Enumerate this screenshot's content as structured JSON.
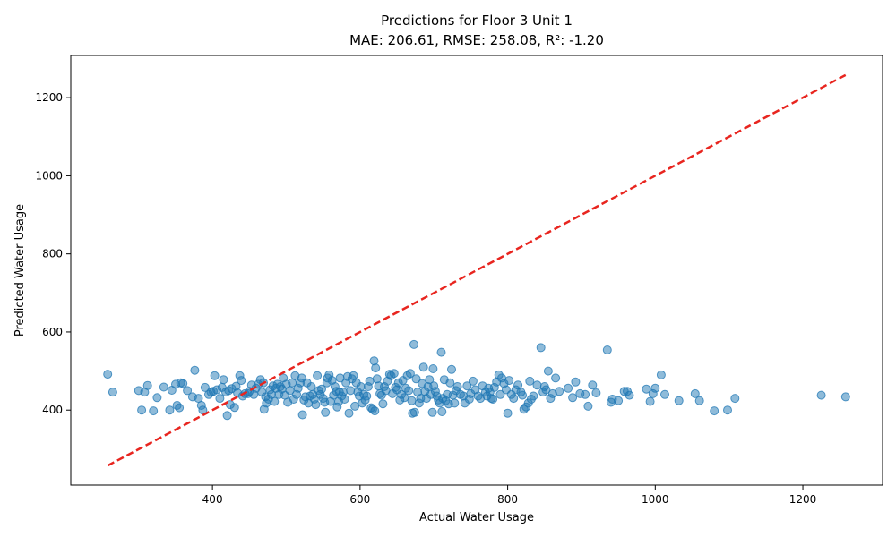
{
  "chart_data": {
    "type": "scatter",
    "title": "Predictions for Floor 3 Unit 1",
    "subtitle": "MAE: 206.61, RMSE: 258.08, R²: -1.20",
    "xlabel": "Actual Water Usage",
    "ylabel": "Predicted Water Usage",
    "xlim": [
      208,
      1308
    ],
    "ylim": [
      208,
      1308
    ],
    "xticks": [
      400,
      600,
      800,
      1000,
      1200
    ],
    "yticks": [
      400,
      600,
      800,
      1000,
      1200
    ],
    "grid": false,
    "legend": "none",
    "point_color": "#1f77b4",
    "point_alpha": 0.5,
    "reference_line": {
      "x": [
        258,
        1258
      ],
      "y": [
        258,
        1258
      ],
      "color": "#e8251f",
      "style": "dashed"
    },
    "series": [
      {
        "points": [
          [
            258,
            492
          ],
          [
            265,
            446
          ],
          [
            300,
            450
          ],
          [
            304,
            400
          ],
          [
            308,
            446
          ],
          [
            312,
            463
          ],
          [
            320,
            398
          ],
          [
            325,
            432
          ],
          [
            334,
            459
          ],
          [
            342,
            400
          ],
          [
            345,
            451
          ],
          [
            350,
            466
          ],
          [
            352,
            412
          ],
          [
            355,
            406
          ],
          [
            357,
            470
          ],
          [
            360,
            468
          ],
          [
            366,
            450
          ],
          [
            373,
            434
          ],
          [
            376,
            502
          ],
          [
            381,
            430
          ],
          [
            385,
            412
          ],
          [
            387,
            400
          ],
          [
            390,
            458
          ],
          [
            395,
            440
          ],
          [
            398,
            446
          ],
          [
            401,
            448
          ],
          [
            403,
            488
          ],
          [
            406,
            452
          ],
          [
            410,
            430
          ],
          [
            413,
            458
          ],
          [
            415,
            478
          ],
          [
            418,
            446
          ],
          [
            420,
            386
          ],
          [
            422,
            450
          ],
          [
            424,
            414
          ],
          [
            426,
            455
          ],
          [
            430,
            407
          ],
          [
            432,
            461
          ],
          [
            434,
            444
          ],
          [
            437,
            488
          ],
          [
            439,
            476
          ],
          [
            441,
            436
          ],
          [
            444,
            442
          ],
          [
            448,
            442
          ],
          [
            450,
            448
          ],
          [
            453,
            464
          ],
          [
            456,
            440
          ],
          [
            459,
            456
          ],
          [
            462,
            466
          ],
          [
            465,
            478
          ],
          [
            467,
            446
          ],
          [
            469,
            470
          ],
          [
            470,
            402
          ],
          [
            472,
            434
          ],
          [
            473,
            418
          ],
          [
            476,
            428
          ],
          [
            478,
            452
          ],
          [
            480,
            440
          ],
          [
            482,
            462
          ],
          [
            484,
            422
          ],
          [
            486,
            456
          ],
          [
            488,
            466
          ],
          [
            490,
            440
          ],
          [
            492,
            460
          ],
          [
            494,
            454
          ],
          [
            496,
            482
          ],
          [
            498,
            438
          ],
          [
            500,
            466
          ],
          [
            502,
            420
          ],
          [
            505,
            450
          ],
          [
            508,
            470
          ],
          [
            510,
            428
          ],
          [
            512,
            488
          ],
          [
            514,
            440
          ],
          [
            516,
            456
          ],
          [
            519,
            470
          ],
          [
            521,
            482
          ],
          [
            522,
            388
          ],
          [
            524,
            426
          ],
          [
            526,
            434
          ],
          [
            528,
            470
          ],
          [
            530,
            418
          ],
          [
            532,
            436
          ],
          [
            534,
            460
          ],
          [
            536,
            440
          ],
          [
            538,
            428
          ],
          [
            540,
            414
          ],
          [
            542,
            488
          ],
          [
            544,
            450
          ],
          [
            546,
            440
          ],
          [
            548,
            454
          ],
          [
            550,
            430
          ],
          [
            552,
            420
          ],
          [
            553,
            394
          ],
          [
            555,
            470
          ],
          [
            556,
            482
          ],
          [
            558,
            490
          ],
          [
            560,
            422
          ],
          [
            562,
            476
          ],
          [
            564,
            438
          ],
          [
            566,
            460
          ],
          [
            568,
            448
          ],
          [
            569,
            408
          ],
          [
            571,
            422
          ],
          [
            572,
            446
          ],
          [
            573,
            482
          ],
          [
            575,
            436
          ],
          [
            577,
            446
          ],
          [
            579,
            428
          ],
          [
            581,
            470
          ],
          [
            583,
            486
          ],
          [
            585,
            392
          ],
          [
            587,
            450
          ],
          [
            589,
            480
          ],
          [
            591,
            488
          ],
          [
            593,
            410
          ],
          [
            595,
            470
          ],
          [
            597,
            446
          ],
          [
            599,
            436
          ],
          [
            601,
            460
          ],
          [
            603,
            418
          ],
          [
            605,
            440
          ],
          [
            607,
            426
          ],
          [
            609,
            436
          ],
          [
            611,
            460
          ],
          [
            613,
            474
          ],
          [
            615,
            406
          ],
          [
            617,
            402
          ],
          [
            619,
            526
          ],
          [
            620,
            398
          ],
          [
            621,
            508
          ],
          [
            623,
            480
          ],
          [
            625,
            462
          ],
          [
            627,
            442
          ],
          [
            629,
            438
          ],
          [
            631,
            416
          ],
          [
            633,
            460
          ],
          [
            635,
            450
          ],
          [
            637,
            474
          ],
          [
            640,
            492
          ],
          [
            642,
            488
          ],
          [
            644,
            442
          ],
          [
            646,
            494
          ],
          [
            648,
            458
          ],
          [
            650,
            452
          ],
          [
            652,
            470
          ],
          [
            654,
            426
          ],
          [
            656,
            440
          ],
          [
            658,
            476
          ],
          [
            660,
            432
          ],
          [
            662,
            456
          ],
          [
            664,
            488
          ],
          [
            666,
            450
          ],
          [
            668,
            494
          ],
          [
            670,
            424
          ],
          [
            671,
            392
          ],
          [
            673,
            568
          ],
          [
            674,
            394
          ],
          [
            676,
            480
          ],
          [
            678,
            446
          ],
          [
            680,
            418
          ],
          [
            682,
            430
          ],
          [
            684,
            468
          ],
          [
            686,
            510
          ],
          [
            688,
            448
          ],
          [
            690,
            430
          ],
          [
            692,
            460
          ],
          [
            694,
            478
          ],
          [
            696,
            440
          ],
          [
            698,
            394
          ],
          [
            699,
            506
          ],
          [
            700,
            462
          ],
          [
            702,
            448
          ],
          [
            704,
            436
          ],
          [
            706,
            426
          ],
          [
            708,
            418
          ],
          [
            710,
            548
          ],
          [
            711,
            396
          ],
          [
            712,
            430
          ],
          [
            714,
            478
          ],
          [
            716,
            424
          ],
          [
            718,
            440
          ],
          [
            720,
            416
          ],
          [
            722,
            470
          ],
          [
            724,
            504
          ],
          [
            726,
            438
          ],
          [
            728,
            418
          ],
          [
            730,
            450
          ],
          [
            732,
            460
          ],
          [
            736,
            440
          ],
          [
            740,
            436
          ],
          [
            742,
            418
          ],
          [
            745,
            462
          ],
          [
            748,
            428
          ],
          [
            750,
            442
          ],
          [
            753,
            474
          ],
          [
            756,
            452
          ],
          [
            760,
            436
          ],
          [
            763,
            430
          ],
          [
            766,
            462
          ],
          [
            770,
            446
          ],
          [
            772,
            436
          ],
          [
            774,
            456
          ],
          [
            776,
            446
          ],
          [
            778,
            430
          ],
          [
            780,
            428
          ],
          [
            782,
            458
          ],
          [
            785,
            472
          ],
          [
            788,
            490
          ],
          [
            790,
            440
          ],
          [
            792,
            482
          ],
          [
            795,
            468
          ],
          [
            798,
            452
          ],
          [
            800,
            392
          ],
          [
            802,
            476
          ],
          [
            805,
            440
          ],
          [
            808,
            430
          ],
          [
            811,
            452
          ],
          [
            814,
            464
          ],
          [
            818,
            446
          ],
          [
            820,
            438
          ],
          [
            822,
            402
          ],
          [
            825,
            408
          ],
          [
            828,
            418
          ],
          [
            830,
            474
          ],
          [
            832,
            428
          ],
          [
            835,
            436
          ],
          [
            840,
            464
          ],
          [
            845,
            560
          ],
          [
            848,
            446
          ],
          [
            850,
            460
          ],
          [
            852,
            452
          ],
          [
            855,
            500
          ],
          [
            858,
            430
          ],
          [
            861,
            442
          ],
          [
            865,
            482
          ],
          [
            870,
            448
          ],
          [
            882,
            456
          ],
          [
            888,
            432
          ],
          [
            892,
            472
          ],
          [
            898,
            442
          ],
          [
            905,
            440
          ],
          [
            909,
            410
          ],
          [
            915,
            464
          ],
          [
            920,
            444
          ],
          [
            935,
            554
          ],
          [
            940,
            420
          ],
          [
            942,
            428
          ],
          [
            950,
            424
          ],
          [
            958,
            448
          ],
          [
            962,
            448
          ],
          [
            965,
            438
          ],
          [
            988,
            454
          ],
          [
            993,
            422
          ],
          [
            997,
            442
          ],
          [
            1000,
            456
          ],
          [
            1008,
            490
          ],
          [
            1013,
            440
          ],
          [
            1032,
            424
          ],
          [
            1054,
            442
          ],
          [
            1060,
            424
          ],
          [
            1080,
            398
          ],
          [
            1098,
            400
          ],
          [
            1108,
            430
          ],
          [
            1225,
            438
          ],
          [
            1258,
            434
          ]
        ]
      }
    ]
  }
}
